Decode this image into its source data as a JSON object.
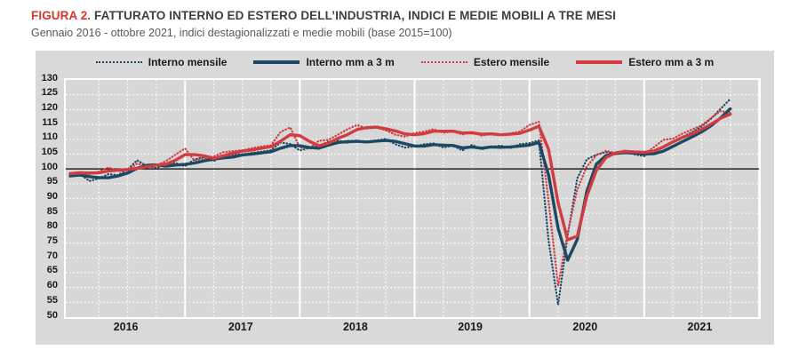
{
  "figure": {
    "label": "FIGURA 2.",
    "title": "FATTURATO INTERNO ED ESTERO DELL’INDUSTRIA, INDICI E MEDIE MOBILI A TRE MESI",
    "subtitle": "Gennaio 2016 - ottobre 2021, indici destagionalizzati e medie mobili (base 2015=100)"
  },
  "colors": {
    "page_bg": "#ffffff",
    "panel_bg": "#d9d9d9",
    "grid_line": "#ffffff",
    "baseline_line": "#000000",
    "title_accent": "#d9352b",
    "title_text": "#3f3f3f",
    "subtitle_text": "#595959",
    "axis_text": "#1a1a1a",
    "navy": "#1c4961",
    "red": "#d23b40"
  },
  "chart_data": {
    "type": "line",
    "title": "Fatturato interno ed estero dell’industria, indici e medie mobili a tre mesi",
    "period_label": "Gennaio 2016 - ottobre 2021",
    "base_label": "base 2015=100",
    "x_unit": "month",
    "months_start": "2016-01",
    "months_end": "2021-10",
    "n_months": 70,
    "x_year_labels": [
      "2016",
      "2017",
      "2018",
      "2019",
      "2020",
      "2021"
    ],
    "y_ticks": [
      130,
      125,
      120,
      115,
      110,
      105,
      100,
      95,
      90,
      85,
      80,
      75,
      70,
      65,
      60,
      55,
      50
    ],
    "ylim": [
      50,
      130
    ],
    "baseline_value": 100,
    "grid": {
      "horizontal_step": 5,
      "vertical_minor_months": 3,
      "vertical_major_months": 12,
      "style": "dotted-white"
    },
    "legend_position": "top-center",
    "series": [
      {
        "name": "Interno mensile",
        "style": "dotted",
        "color": "#1c4961",
        "values": [
          97.8,
          98.4,
          95.9,
          96.8,
          98.2,
          97.9,
          99.8,
          102.9,
          101.0,
          100.3,
          101.5,
          102.0,
          100.9,
          103.2,
          104.0,
          102.6,
          104.5,
          104.8,
          104.9,
          105.4,
          105.8,
          106.3,
          108.9,
          108.4,
          106.2,
          107.1,
          107.8,
          109.2,
          109.6,
          108.8,
          109.6,
          109.0,
          109.6,
          110.1,
          108.3,
          107.2,
          107.6,
          108.3,
          108.6,
          107.2,
          107.9,
          106.2,
          108.1,
          106.6,
          107.4,
          107.9,
          107.0,
          108.3,
          108.7,
          109.6,
          75.8,
          54.2,
          77.5,
          96.8,
          103.2,
          104.8,
          105.6,
          105.2,
          105.8,
          104.9,
          104.3,
          106.0,
          107.6,
          109.3,
          110.8,
          112.4,
          114.3,
          117.0,
          120.3,
          123.6
        ]
      },
      {
        "name": "Interno mm a 3 m",
        "style": "solid",
        "color": "#1c4961",
        "values": [
          97.6,
          97.9,
          97.4,
          97.0,
          97.0,
          97.6,
          98.6,
          100.2,
          101.2,
          101.4,
          100.9,
          101.3,
          101.5,
          102.0,
          102.7,
          103.3,
          103.7,
          104.0,
          104.7,
          105.0,
          105.4,
          105.8,
          107.0,
          107.9,
          107.8,
          107.2,
          107.0,
          108.0,
          108.9,
          109.2,
          109.3,
          109.1,
          109.4,
          109.6,
          109.3,
          108.5,
          107.7,
          107.7,
          108.2,
          108.0,
          107.9,
          107.1,
          107.4,
          107.0,
          107.4,
          107.3,
          107.4,
          107.7,
          108.0,
          108.9,
          98.0,
          79.9,
          69.2,
          76.2,
          92.5,
          101.6,
          104.5,
          105.2,
          105.5,
          105.3,
          105.0,
          105.1,
          106.0,
          107.6,
          109.2,
          110.8,
          112.5,
          114.6,
          117.2,
          120.3
        ]
      },
      {
        "name": "Estero mensile",
        "style": "dotted",
        "color": "#d23b40",
        "values": [
          98.6,
          98.9,
          98.2,
          99.1,
          100.5,
          99.3,
          99.5,
          101.8,
          100.9,
          101.2,
          102.6,
          104.8,
          106.9,
          102.8,
          103.5,
          104.2,
          105.6,
          106.0,
          106.3,
          107.0,
          107.6,
          108.0,
          112.5,
          114.0,
          107.2,
          106.8,
          109.5,
          109.8,
          111.6,
          113.4,
          114.8,
          113.6,
          113.9,
          113.0,
          111.5,
          110.9,
          112.1,
          112.6,
          113.4,
          112.2,
          112.6,
          111.6,
          112.4,
          111.2,
          111.8,
          111.4,
          112.0,
          112.6,
          114.8,
          115.9,
          89.2,
          60.5,
          78.5,
          93.0,
          100.8,
          104.6,
          106.1,
          105.4,
          106.2,
          105.6,
          105.1,
          107.3,
          109.8,
          110.2,
          111.9,
          113.3,
          114.7,
          117.2,
          119.5,
          118.9
        ]
      },
      {
        "name": "Estero mm a 3 m",
        "style": "solid",
        "color": "#d23b40",
        "values": [
          98.4,
          98.7,
          98.6,
          98.7,
          99.3,
          99.6,
          99.8,
          100.2,
          100.7,
          101.3,
          101.6,
          102.9,
          104.8,
          104.8,
          104.4,
          103.5,
          104.4,
          105.3,
          106.0,
          106.4,
          107.0,
          107.5,
          109.4,
          111.5,
          111.2,
          109.3,
          107.8,
          108.7,
          110.3,
          111.6,
          113.3,
          113.9,
          114.1,
          113.5,
          112.8,
          111.8,
          111.5,
          111.9,
          112.7,
          112.7,
          112.7,
          112.1,
          112.2,
          111.7,
          111.8,
          111.5,
          111.7,
          112.0,
          113.1,
          114.4,
          106.6,
          88.5,
          76.1,
          77.3,
          90.8,
          99.5,
          103.8,
          105.4,
          105.9,
          105.7,
          105.6,
          106.0,
          107.4,
          109.1,
          110.6,
          111.8,
          113.3,
          115.1,
          117.1,
          118.5
        ]
      }
    ]
  }
}
